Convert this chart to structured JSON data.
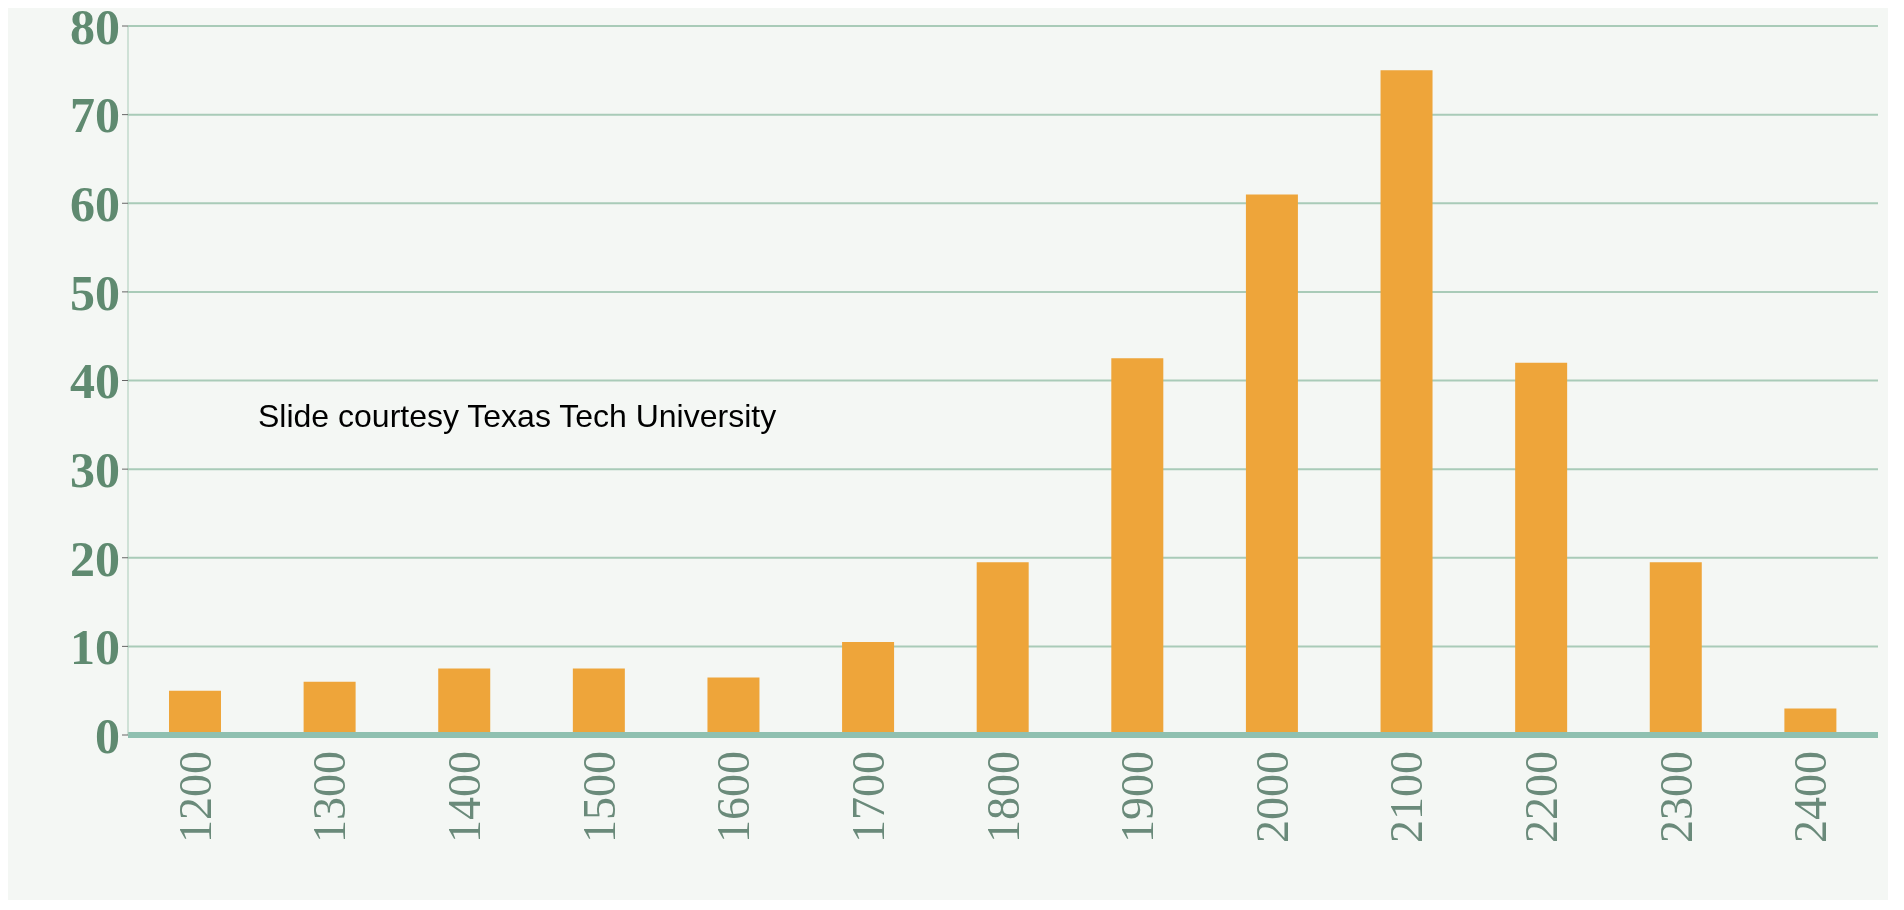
{
  "chart_data": {
    "type": "bar",
    "categories": [
      "1200",
      "1300",
      "1400",
      "1500",
      "1600",
      "1700",
      "1800",
      "1900",
      "2000",
      "2100",
      "2200",
      "2300",
      "2400"
    ],
    "values": [
      5,
      6,
      7.5,
      7.5,
      6.5,
      10.5,
      19.5,
      42.5,
      61,
      75,
      42,
      19.5,
      3
    ],
    "color": "#eea53a",
    "ylim": [
      0,
      80
    ],
    "yticks": [
      0,
      10,
      20,
      30,
      40,
      50,
      60,
      70,
      80
    ],
    "grid": "y",
    "annotations": [
      "Slide courtesy Texas Tech University"
    ]
  }
}
